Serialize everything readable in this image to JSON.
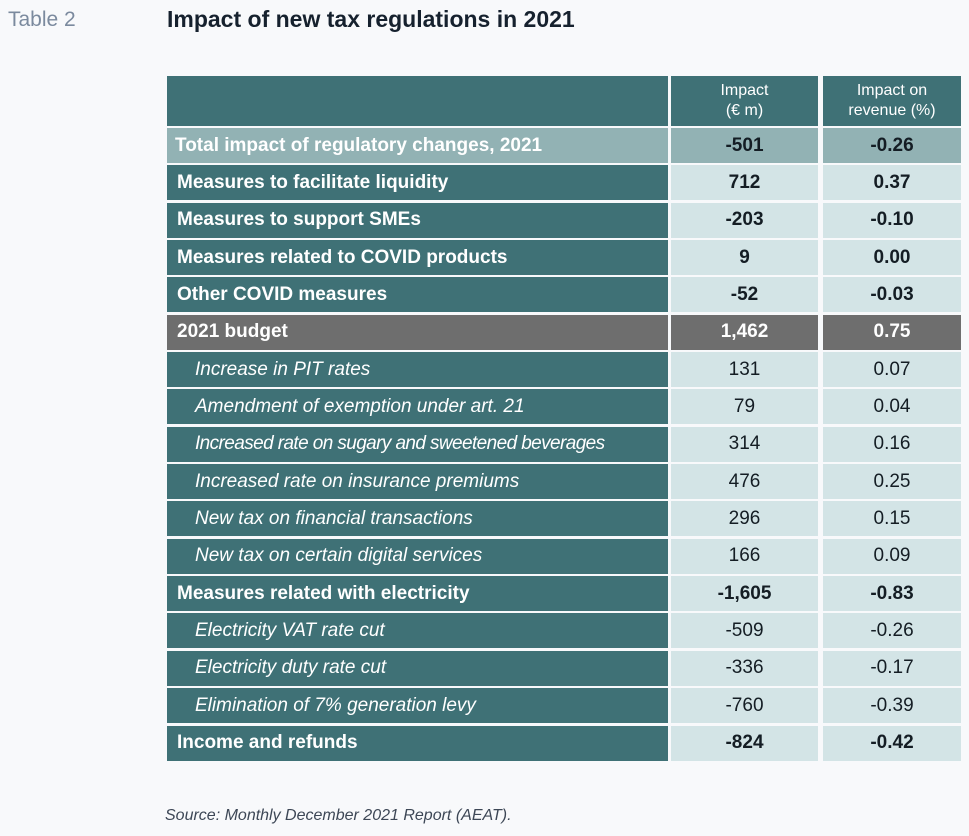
{
  "table_label": "Table 2",
  "title": "Impact of new tax regulations in 2021",
  "header": {
    "col1": "",
    "col2_line1": "Impact",
    "col2_line2": "(€ m)",
    "col3_line1": "Impact on",
    "col3_line2": "revenue (%)"
  },
  "rows": [
    {
      "label": "Total impact of regulatory changes, 2021",
      "impact": "-501",
      "revenue": "-0.26"
    },
    {
      "label": "Measures to facilitate liquidity",
      "impact": "712",
      "revenue": "0.37"
    },
    {
      "label": "Measures to support SMEs",
      "impact": "-203",
      "revenue": "-0.10"
    },
    {
      "label": "Measures related to COVID products",
      "impact": "9",
      "revenue": "0.00"
    },
    {
      "label": "Other COVID measures",
      "impact": "-52",
      "revenue": "-0.03"
    },
    {
      "label": "2021 budget",
      "impact": "1,462",
      "revenue": "0.75"
    },
    {
      "label": "Increase in PIT rates",
      "impact": "131",
      "revenue": "0.07"
    },
    {
      "label": "Amendment of exemption under art. 21",
      "impact": "79",
      "revenue": "0.04"
    },
    {
      "label": "Increased rate on sugary and sweetened beverages",
      "impact": "314",
      "revenue": "0.16"
    },
    {
      "label": "Increased rate on insurance premiums",
      "impact": "476",
      "revenue": "0.25"
    },
    {
      "label": "New tax on financial transactions",
      "impact": "296",
      "revenue": "0.15"
    },
    {
      "label": "New tax on certain digital services",
      "impact": "166",
      "revenue": "0.09"
    },
    {
      "label": "Measures related with electricity",
      "impact": "-1,605",
      "revenue": "-0.83"
    },
    {
      "label": "Electricity VAT rate cut",
      "impact": "-509",
      "revenue": "-0.26"
    },
    {
      "label": "Electricity duty rate cut",
      "impact": "-336",
      "revenue": "-0.17"
    },
    {
      "label": "Elimination of 7% generation levy",
      "impact": "-760",
      "revenue": "-0.39"
    },
    {
      "label": "Income and refunds",
      "impact": "-824",
      "revenue": "-0.42"
    }
  ],
  "source": "Source: Monthly December 2021 Report (AEAT).",
  "colors": {
    "header_teal": "#3f7176",
    "value_cell": "#d3e4e6",
    "total_row": "#92b2b4",
    "budget_row": "#6e6e6e"
  }
}
